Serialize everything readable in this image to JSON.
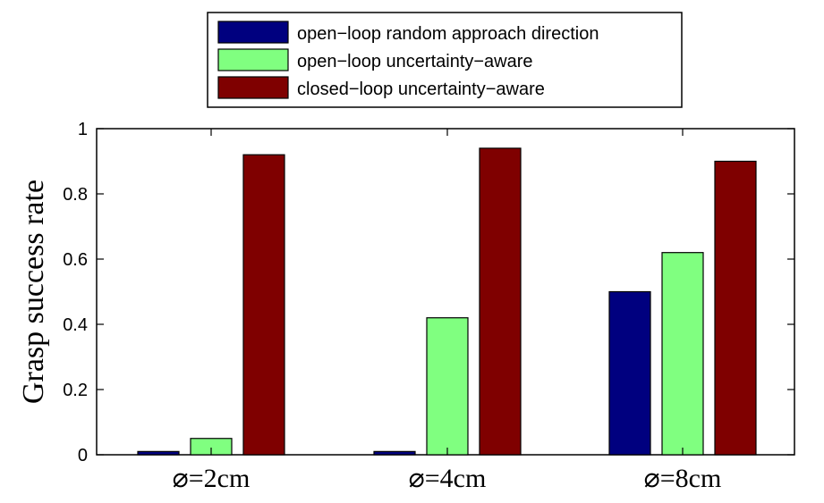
{
  "chart_data": {
    "type": "bar",
    "categories": [
      "⌀=2cm",
      "⌀=4cm",
      "⌀=8cm"
    ],
    "series": [
      {
        "name": "open−loop random approach direction",
        "color": "#00007f",
        "values": [
          0.01,
          0.01,
          0.5
        ]
      },
      {
        "name": "open−loop uncertainty−aware",
        "color": "#80ff80",
        "values": [
          0.05,
          0.42,
          0.62
        ]
      },
      {
        "name": "closed−loop uncertainty−aware",
        "color": "#7f0000",
        "values": [
          0.92,
          0.94,
          0.9
        ]
      }
    ],
    "title": "",
    "xlabel": "",
    "ylabel": "Grasp  success rate",
    "ylim": [
      0,
      1
    ],
    "yticks": [
      0,
      0.2,
      0.4,
      0.6,
      0.8,
      1
    ],
    "ytick_labels": [
      "0",
      "0.2",
      "0.4",
      "0.6",
      "0.8",
      "1"
    ],
    "grid": false,
    "legend_position": "top"
  }
}
